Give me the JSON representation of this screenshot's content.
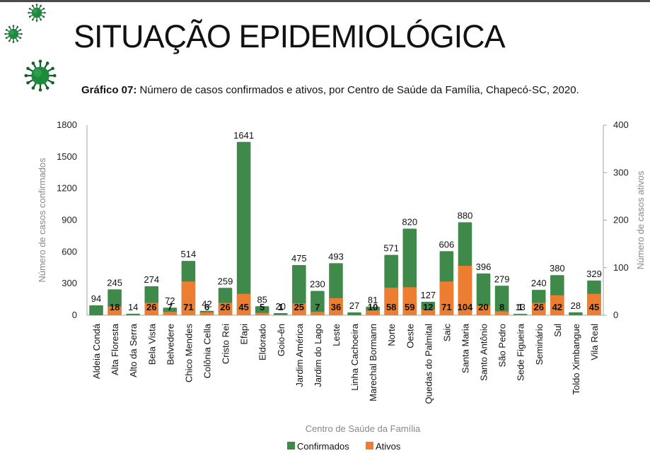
{
  "header": {
    "title": "SITUAÇÃO EPIDEMIOLÓGICA",
    "subtitle_bold": "Gráfico 07:",
    "subtitle_rest": " Número de casos confirmados e ativos, por Centro de Saúde da Família, Chapecó-SC, 2020.",
    "icons": [
      "virus-icon",
      "virus-icon",
      "virus-icon"
    ]
  },
  "colors": {
    "confirmados": "#3f8a4a",
    "ativos": "#ed7d31",
    "axis": "#a6a6a6",
    "virus": "#1e8a3c"
  },
  "chart_data": {
    "type": "bar",
    "title": "Número de casos confirmados e ativos, por Centro de Saúde da Família, Chapecó-SC, 2020.",
    "xlabel": "Centro de Saúde da Família",
    "ylabel": "Número de casos confirmados",
    "y2label": "Número de casos ativos",
    "ylim": [
      0,
      1800
    ],
    "y2lim": [
      0,
      400
    ],
    "yticks": [
      0,
      300,
      600,
      900,
      1200,
      1500,
      1800
    ],
    "y2ticks": [
      0,
      100,
      200,
      300,
      400
    ],
    "grid": false,
    "legend_position": "bottom",
    "categories": [
      "Aldeia Condá",
      "Alta Floresta",
      "Alto da Serra",
      "Bela Vista",
      "Belvedere",
      "Chico Mendes",
      "Colônia Cella",
      "Cristo Rei",
      "Efapi",
      "Eldorado",
      "Goio-ên",
      "Jardim América",
      "Jardim do Lago",
      "Leste",
      "Linha Cachoeira",
      "Marechal Bormann",
      "Norte",
      "Oeste",
      "Quedas do Palmital",
      "Saic",
      "Santa Maria",
      "Santo Antônio",
      "São Pedro",
      "Sede Figueira",
      "Seminário",
      "Sul",
      "Toldo Ximbangue",
      "Vila Real"
    ],
    "series": [
      {
        "name": "Confirmados",
        "axis": "left",
        "values": [
          94,
          245,
          14,
          274,
          72,
          514,
          42,
          259,
          1641,
          85,
          20,
          475,
          230,
          493,
          27,
          81,
          571,
          820,
          127,
          606,
          880,
          396,
          279,
          13,
          240,
          380,
          28,
          329
        ]
      },
      {
        "name": "Ativos",
        "axis": "right",
        "values": [
          0,
          18,
          0,
          26,
          7,
          71,
          6,
          26,
          45,
          5,
          1,
          25,
          7,
          36,
          0,
          10,
          58,
          59,
          12,
          71,
          104,
          20,
          8,
          1,
          26,
          42,
          0,
          45
        ]
      }
    ],
    "ativos_labels_shown": [
      false,
      true,
      false,
      true,
      true,
      true,
      true,
      true,
      true,
      true,
      true,
      true,
      true,
      true,
      false,
      true,
      true,
      true,
      true,
      true,
      true,
      true,
      true,
      true,
      true,
      true,
      false,
      true
    ]
  }
}
